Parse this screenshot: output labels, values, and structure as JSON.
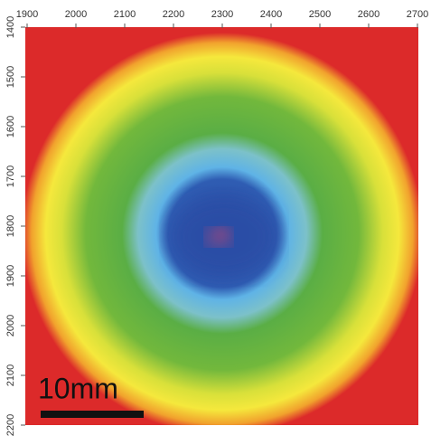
{
  "chart_data": {
    "type": "heatmap",
    "xlim": [
      1900,
      2700
    ],
    "xticks": [
      1900,
      2000,
      2100,
      2200,
      2300,
      2400,
      2500,
      2600,
      2700
    ],
    "ylim": [
      1400,
      2200
    ],
    "yticks": [
      1400,
      1500,
      1600,
      1700,
      1800,
      1900,
      2000,
      2100,
      2200
    ],
    "scale_bar_label": "10mm"
  }
}
